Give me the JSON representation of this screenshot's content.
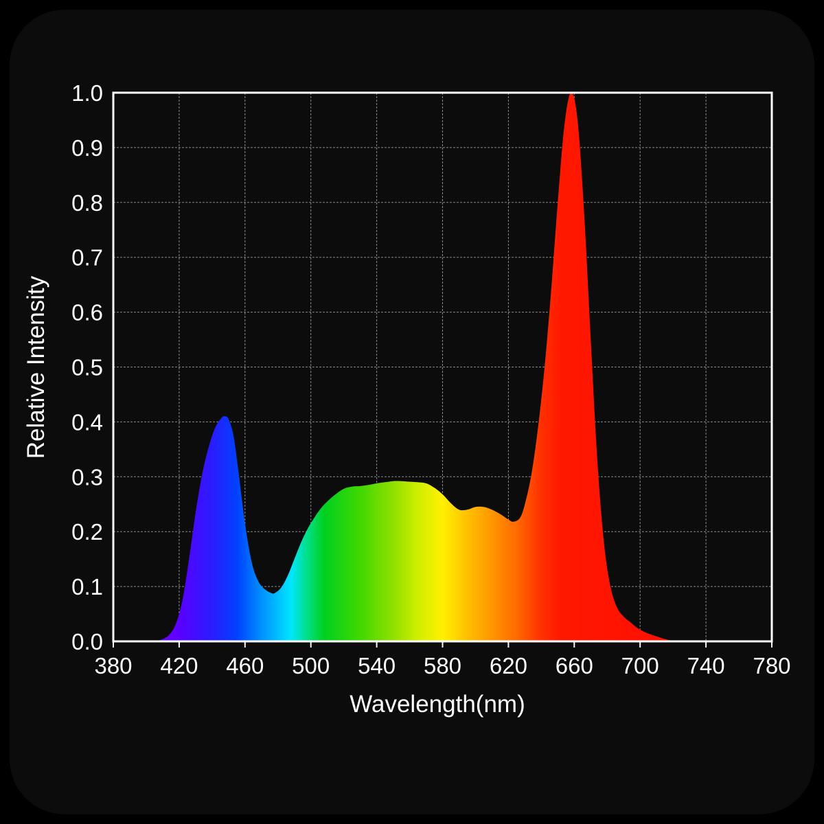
{
  "chart_data": {
    "type": "area",
    "xlabel": "Wavelength(nm)",
    "ylabel": "Relative Intensity",
    "xlim": [
      380,
      780
    ],
    "ylim": [
      0.0,
      1.0
    ],
    "x_ticks": [
      "380",
      "420",
      "460",
      "500",
      "540",
      "580",
      "620",
      "660",
      "700",
      "740",
      "780"
    ],
    "y_ticks": [
      "0.0",
      "0.1",
      "0.2",
      "0.3",
      "0.4",
      "0.5",
      "0.6",
      "0.7",
      "0.8",
      "0.9",
      "1.0"
    ],
    "grid": true,
    "colors": {
      "background": "#0c0c0c",
      "plot_border": "#ffffff",
      "grid": "#8a8a8a",
      "text": "#ffffff"
    },
    "series": [
      {
        "x": [
          405,
          410,
          414,
          418,
          422,
          426,
          430,
          434,
          438,
          442,
          446,
          448,
          450,
          453,
          456,
          460,
          464,
          468,
          472,
          476,
          478,
          482,
          486,
          490,
          494,
          498,
          502,
          506,
          510,
          515,
          520,
          525,
          530,
          535,
          540,
          545,
          550,
          555,
          560,
          565,
          570,
          575,
          580,
          585,
          590,
          595,
          600,
          605,
          610,
          615,
          620,
          623,
          627,
          630,
          634,
          638,
          642,
          646,
          650,
          654,
          658,
          662,
          666,
          670,
          674,
          678,
          682,
          686,
          690,
          694,
          698,
          702,
          706,
          710,
          714,
          718,
          722
        ],
        "y": [
          0.0,
          0.004,
          0.012,
          0.032,
          0.075,
          0.15,
          0.235,
          0.305,
          0.355,
          0.39,
          0.408,
          0.41,
          0.405,
          0.375,
          0.31,
          0.215,
          0.145,
          0.11,
          0.095,
          0.088,
          0.088,
          0.098,
          0.12,
          0.15,
          0.18,
          0.205,
          0.225,
          0.242,
          0.255,
          0.268,
          0.278,
          0.282,
          0.283,
          0.285,
          0.288,
          0.29,
          0.292,
          0.292,
          0.291,
          0.29,
          0.288,
          0.28,
          0.268,
          0.252,
          0.24,
          0.24,
          0.245,
          0.245,
          0.24,
          0.232,
          0.222,
          0.218,
          0.225,
          0.25,
          0.305,
          0.39,
          0.5,
          0.64,
          0.8,
          0.94,
          1.0,
          0.95,
          0.78,
          0.55,
          0.33,
          0.18,
          0.1,
          0.062,
          0.045,
          0.035,
          0.025,
          0.018,
          0.013,
          0.009,
          0.005,
          0.002,
          0.0
        ]
      }
    ]
  }
}
